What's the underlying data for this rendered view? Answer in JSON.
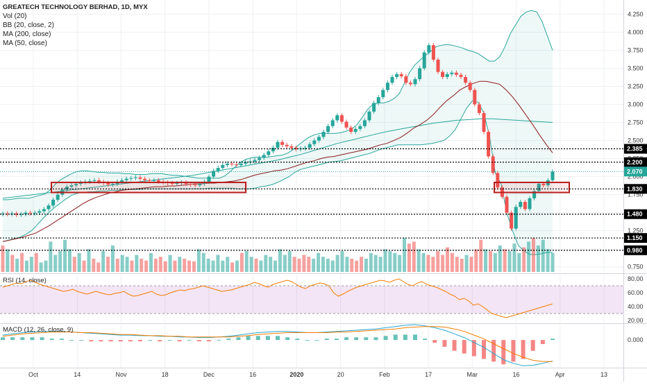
{
  "legend": {
    "title": "GREATECH TECHNOLOGY BERHAD, 1D, MYX",
    "lines": [
      "Vol (20)",
      "BB (20, close, 2)",
      "MA (200, close)",
      "MA (50, close)"
    ]
  },
  "rsi_label": "RSI (14, close)",
  "macd_label": "MACD (12, 26, close, 9)",
  "colors": {
    "up": "#26a69a",
    "down": "#ef5350",
    "bb": "#26a69a",
    "ma": "#8b1a1a",
    "rsi": "#f57c00",
    "macd": "#26a6d1",
    "signal": "#f57c00",
    "grid": "#eef0f3",
    "level": "#000000",
    "box": "#b71c1c",
    "current": "#26a69a"
  },
  "chart_data": [
    {
      "type": "candlestick",
      "title": "GREATECH TECHNOLOGY BERHAD, 1D, MYX",
      "x_tick_labels": [
        "Oct",
        "14",
        "Nov",
        "18",
        "Dec",
        "16",
        "2020",
        "20",
        "Feb",
        "17",
        "Mar",
        "16",
        "Apr",
        "13"
      ],
      "y_tick_labels": [
        "0.750",
        "1.000",
        "1.250",
        "1.500",
        "1.750",
        "2.000",
        "2.250",
        "2.500",
        "2.750",
        "3.000",
        "3.250",
        "3.500",
        "3.750",
        "4.000",
        "4.250"
      ],
      "ylim": [
        0.68,
        4.35
      ],
      "horizontal_levels": [
        2.385,
        2.2,
        1.83,
        1.48,
        1.15,
        0.98
      ],
      "current_price": 2.07,
      "zones": [
        {
          "from": "Oct-7",
          "to": "Dec-12",
          "low": 1.78,
          "high": 1.92
        },
        {
          "from": "Mar-11",
          "to": "Mar-26",
          "low": 1.78,
          "high": 1.92
        }
      ],
      "close_series": [
        1.49,
        1.48,
        1.49,
        1.47,
        1.48,
        1.5,
        1.49,
        1.5,
        1.52,
        1.55,
        1.6,
        1.68,
        1.75,
        1.82,
        1.86,
        1.88,
        1.9,
        1.92,
        1.93,
        1.94,
        1.95,
        1.93,
        1.91,
        1.89,
        1.9,
        1.93,
        1.95,
        1.97,
        1.98,
        1.99,
        1.97,
        1.95,
        1.94,
        1.95,
        1.93,
        1.92,
        1.91,
        1.9,
        1.91,
        1.92,
        1.9,
        1.89,
        1.88,
        1.9,
        1.93,
        2.0,
        2.08,
        2.12,
        2.16,
        2.18,
        2.17,
        2.16,
        2.18,
        2.2,
        2.21,
        2.23,
        2.26,
        2.3,
        2.35,
        2.4,
        2.48,
        2.44,
        2.42,
        2.4,
        2.38,
        2.39,
        2.4,
        2.45,
        2.5,
        2.55,
        2.62,
        2.7,
        2.78,
        2.85,
        2.76,
        2.68,
        2.62,
        2.66,
        2.7,
        2.78,
        2.9,
        3.02,
        3.1,
        3.2,
        3.3,
        3.38,
        3.42,
        3.39,
        3.3,
        3.28,
        3.35,
        3.5,
        3.72,
        3.82,
        3.62,
        3.45,
        3.38,
        3.42,
        3.44,
        3.41,
        3.38,
        3.3,
        3.2,
        3.0,
        2.88,
        2.62,
        2.28,
        2.05,
        1.85,
        1.72,
        1.5,
        1.28,
        1.58,
        1.65,
        1.55,
        1.7,
        1.8,
        1.9,
        1.88,
        1.95,
        2.07
      ],
      "bb_upper": [
        1.68,
        1.68,
        1.69,
        1.7,
        1.7,
        1.7,
        1.72,
        1.74,
        1.76,
        1.82,
        1.9,
        1.96,
        2.0,
        2.04,
        2.07,
        2.08,
        2.08,
        2.07,
        2.06,
        2.06,
        2.05,
        2.05,
        2.05,
        2.04,
        2.04,
        2.03,
        2.03,
        2.03,
        2.04,
        2.04,
        2.04,
        2.03,
        2.02,
        2.02,
        2.01,
        2.0,
        1.99,
        1.98,
        1.98,
        1.98,
        1.98,
        1.98,
        2.01,
        2.07,
        2.14,
        2.2,
        2.24,
        2.26,
        2.27,
        2.27,
        2.27,
        2.28,
        2.29,
        2.3,
        2.33,
        2.38,
        2.44,
        2.5,
        2.55,
        2.58,
        2.6,
        2.6,
        2.6,
        2.6,
        2.61,
        2.63,
        2.66,
        2.72,
        2.82,
        2.93,
        3.0,
        3.02,
        3.02,
        3.04,
        3.08,
        3.15,
        3.3,
        3.45,
        3.55,
        3.62,
        3.68,
        3.74,
        3.8,
        3.82,
        3.83,
        3.82,
        3.8,
        3.78,
        3.75,
        3.73,
        3.7,
        3.65,
        3.6,
        3.6,
        3.66,
        3.8,
        3.98,
        4.1,
        4.22,
        4.28,
        4.3,
        4.28,
        4.15,
        3.95,
        3.75
      ],
      "bb_lower": [
        1.1,
        1.12,
        1.14,
        1.16,
        1.2,
        1.25,
        1.33,
        1.42,
        1.5,
        1.57,
        1.63,
        1.69,
        1.74,
        1.77,
        1.78,
        1.79,
        1.79,
        1.8,
        1.8,
        1.81,
        1.81,
        1.82,
        1.82,
        1.82,
        1.82,
        1.83,
        1.83,
        1.83,
        1.83,
        1.83,
        1.83,
        1.83,
        1.83,
        1.83,
        1.83,
        1.83,
        1.84,
        1.84,
        1.84,
        1.84,
        1.84,
        1.83,
        1.83,
        1.83,
        1.84,
        1.86,
        1.87,
        1.89,
        1.92,
        1.96,
        2.0,
        2.06,
        2.1,
        2.12,
        2.14,
        2.16,
        2.18,
        2.2,
        2.21,
        2.22,
        2.24,
        2.26,
        2.28,
        2.3,
        2.32,
        2.35,
        2.38,
        2.4,
        2.42,
        2.44,
        2.44,
        2.44,
        2.44,
        2.44,
        2.45,
        2.46,
        2.48,
        2.5,
        2.56,
        2.65,
        2.8,
        2.95,
        3.05,
        3.03,
        2.88,
        2.55,
        2.05,
        1.9,
        1.5,
        1.25,
        1.05,
        0.97,
        0.92,
        0.92,
        0.93,
        0.95,
        0.95
      ],
      "ma_series": [
        1.1,
        1.12,
        1.14,
        1.16,
        1.19,
        1.22,
        1.27,
        1.32,
        1.38,
        1.44,
        1.5,
        1.56,
        1.62,
        1.67,
        1.71,
        1.74,
        1.77,
        1.79,
        1.81,
        1.82,
        1.83,
        1.84,
        1.85,
        1.86,
        1.86,
        1.87,
        1.87,
        1.88,
        1.89,
        1.9,
        1.9,
        1.91,
        1.91,
        1.92,
        1.93,
        1.94,
        1.96,
        1.99,
        2.02,
        2.04,
        2.06,
        2.08,
        2.09,
        2.11,
        2.14,
        2.17,
        2.2,
        2.22,
        2.25,
        2.27,
        2.28,
        2.3,
        2.32,
        2.34,
        2.36,
        2.38,
        2.41,
        2.44,
        2.46,
        2.5,
        2.54,
        2.6,
        2.67,
        2.72,
        2.78,
        2.86,
        2.96,
        3.05,
        3.12,
        3.2,
        3.25,
        3.29,
        3.32,
        3.32,
        3.3,
        3.28,
        3.2,
        3.1,
        2.98,
        2.85,
        2.72,
        2.58,
        2.45,
        2.33
      ],
      "bb_middle": [
        1.7,
        1.72,
        1.74,
        1.76,
        1.78,
        1.8,
        1.82,
        1.84,
        1.86,
        1.88,
        1.9,
        1.92,
        1.94,
        1.96,
        1.98,
        2.0,
        2.02,
        2.05,
        2.08,
        2.11,
        2.14,
        2.17,
        2.2,
        2.23,
        2.27,
        2.31,
        2.36,
        2.41,
        2.46,
        2.5,
        2.54,
        2.58,
        2.62,
        2.65,
        2.68,
        2.71,
        2.74,
        2.76,
        2.78,
        2.79,
        2.8,
        2.8,
        2.79,
        2.78,
        2.77,
        2.76,
        2.75
      ]
    },
    {
      "type": "bar",
      "title": "Vol (20)",
      "values": [
        70,
        60,
        45,
        35,
        50,
        30,
        40,
        50,
        25,
        30,
        80,
        45,
        55,
        85,
        60,
        40,
        50,
        30,
        60,
        35,
        25,
        55,
        40,
        70,
        35,
        45,
        40,
        30,
        45,
        35,
        30,
        50,
        35,
        40,
        28,
        45,
        30,
        40,
        35,
        30,
        28,
        60,
        50,
        35,
        30,
        45,
        30,
        40,
        25,
        30,
        50,
        55,
        40,
        35,
        30,
        45,
        40,
        30,
        60,
        45,
        55,
        40,
        35,
        45,
        40,
        35,
        50,
        40,
        35,
        30,
        45,
        55,
        40,
        35,
        30,
        40,
        35,
        50,
        45,
        40,
        60,
        55,
        50,
        45,
        90,
        75,
        80,
        60,
        50,
        45,
        40,
        55,
        45,
        65,
        50,
        40,
        35,
        45,
        40,
        60,
        85,
        60,
        55,
        50,
        70,
        60,
        55,
        75,
        50,
        65,
        80,
        90,
        70,
        85,
        60,
        50
      ],
      "up": [
        false,
        true,
        false,
        true,
        false,
        true,
        true,
        false,
        true,
        true,
        true,
        true,
        true,
        true,
        true,
        false,
        true,
        false,
        true,
        false,
        false,
        true,
        false,
        true,
        false,
        true,
        true,
        false,
        true,
        false,
        false,
        true,
        false,
        false,
        false,
        true,
        false,
        true,
        false,
        false,
        false,
        true,
        true,
        true,
        true,
        true,
        true,
        true,
        false,
        true,
        false,
        true,
        true,
        false,
        true,
        true,
        true,
        true,
        true,
        true,
        true,
        false,
        false,
        false,
        false,
        true,
        true,
        true,
        true,
        true,
        true,
        true,
        true,
        false,
        false,
        false,
        true,
        true,
        true,
        true,
        true,
        true,
        true,
        true,
        true,
        false,
        false,
        true,
        true,
        false,
        false,
        false,
        false,
        false,
        false,
        false,
        false,
        true,
        false,
        false,
        false,
        true,
        false,
        true,
        true,
        false,
        true,
        true,
        true,
        false,
        true,
        false,
        true,
        true,
        true,
        true
      ]
    },
    {
      "type": "line",
      "title": "RSI (14, close)",
      "y_tick_labels": [
        "20.00",
        "40.00",
        "60.00",
        "80.00"
      ],
      "ylim": [
        18,
        85
      ],
      "band": [
        30,
        70
      ],
      "values": [
        68,
        70,
        72,
        74,
        73,
        76,
        78,
        75,
        72,
        70,
        68,
        66,
        64,
        62,
        63,
        65,
        62,
        60,
        58,
        60,
        62,
        60,
        58,
        57,
        59,
        60,
        62,
        58,
        55,
        56,
        58,
        60,
        62,
        58,
        56,
        57,
        60,
        62,
        64,
        63,
        65,
        66,
        68,
        70,
        68,
        66,
        64,
        62,
        63,
        64,
        66,
        68,
        70,
        72,
        75,
        73,
        70,
        68,
        72,
        74,
        76,
        78,
        76,
        72,
        68,
        66,
        70,
        72,
        74,
        73,
        70,
        60,
        55,
        58,
        62,
        65,
        68,
        70,
        72,
        74,
        76,
        78,
        77,
        75,
        78,
        80,
        76,
        72,
        70,
        74,
        76,
        72,
        70,
        68,
        65,
        62,
        58,
        55,
        50,
        52,
        48,
        42,
        44,
        40,
        35,
        30,
        28,
        26,
        24,
        26,
        28,
        30,
        32,
        34,
        36,
        38,
        40,
        42,
        44
      ]
    },
    {
      "type": "line",
      "title": "MACD (12, 26, close, 9)",
      "y_tick_labels": [
        "0.000"
      ],
      "ylim": [
        -0.45,
        0.25
      ],
      "macd": [
        0.08,
        0.1,
        0.12,
        0.13,
        0.14,
        0.14,
        0.14,
        0.13,
        0.12,
        0.11,
        0.1,
        0.09,
        0.08,
        0.08,
        0.07,
        0.07,
        0.06,
        0.06,
        0.05,
        0.05,
        0.04,
        0.04,
        0.05,
        0.06,
        0.08,
        0.1,
        0.12,
        0.13,
        0.14,
        0.14,
        0.13,
        0.12,
        0.12,
        0.13,
        0.14,
        0.15,
        0.16,
        0.17,
        0.18,
        0.2,
        0.22,
        0.24,
        0.25,
        0.23,
        0.2,
        0.16,
        0.1,
        0.04,
        -0.04,
        -0.12,
        -0.22,
        -0.32,
        -0.38,
        -0.42,
        -0.41,
        -0.38,
        -0.34
      ],
      "signal": [
        0.06,
        0.08,
        0.1,
        0.11,
        0.12,
        0.13,
        0.13,
        0.13,
        0.12,
        0.12,
        0.11,
        0.1,
        0.09,
        0.09,
        0.08,
        0.07,
        0.07,
        0.06,
        0.06,
        0.05,
        0.05,
        0.05,
        0.05,
        0.05,
        0.06,
        0.07,
        0.09,
        0.1,
        0.11,
        0.12,
        0.12,
        0.12,
        0.12,
        0.12,
        0.13,
        0.13,
        0.14,
        0.15,
        0.16,
        0.17,
        0.18,
        0.2,
        0.21,
        0.22,
        0.22,
        0.21,
        0.18,
        0.14,
        0.08,
        0.02,
        -0.06,
        -0.14,
        -0.22,
        -0.28,
        -0.33,
        -0.35,
        -0.35
      ]
    }
  ]
}
